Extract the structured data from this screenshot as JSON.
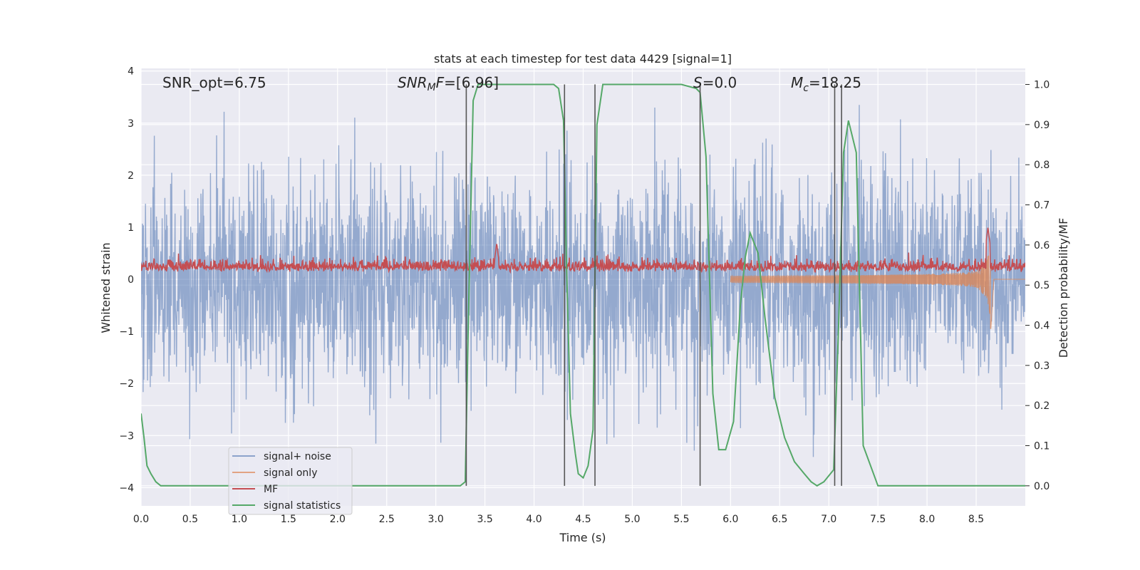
{
  "chart_data": {
    "type": "line",
    "title": "stats at each timestep for test data 4429 [signal=1]",
    "xlabel": "Time (s)",
    "ylabel": "Whitened strain",
    "y2label": "Detection probability/MF",
    "xlim": [
      0.0,
      9.0
    ],
    "ylim": [
      -4.35,
      4.05
    ],
    "y2lim": [
      -0.05,
      1.04
    ],
    "x_ticks": [
      "0.0",
      "0.5",
      "1.0",
      "1.5",
      "2.0",
      "2.5",
      "3.0",
      "3.5",
      "4.0",
      "4.5",
      "5.0",
      "5.5",
      "6.0",
      "6.5",
      "7.0",
      "7.5",
      "8.0",
      "8.5"
    ],
    "y_ticks": [
      "4",
      "3",
      "2",
      "1",
      "0",
      "−1",
      "−2",
      "−3",
      "−4"
    ],
    "y2_ticks": [
      "1.0",
      "0.9",
      "0.8",
      "0.7",
      "0.6",
      "0.5",
      "0.4",
      "0.3",
      "0.2",
      "0.1",
      "0.0"
    ],
    "grid": true,
    "legend_position": "lower-left",
    "annotations": {
      "snr_opt": "SNR_opt=6.75",
      "snr_mf_sym": "SNR",
      "snr_mf_sub": "M",
      "snr_mf_italic": "F",
      "snr_mf_rest": "=[6.96]",
      "s_sym": "S",
      "s_rest": "=0.0",
      "mc_sym": "M",
      "mc_sub": "c",
      "mc_rest": "=18.25"
    },
    "vertical_lines_x": [
      3.31,
      4.31,
      4.62,
      5.69,
      7.06,
      7.13
    ],
    "series": [
      {
        "name": "signal+ noise",
        "color": "#4c72b0",
        "axis": "left",
        "noise_envelope": {
          "typical_amplitude": 1.5,
          "max_peak": 3.45,
          "min_trough": -3.85
        }
      },
      {
        "name": "signal only",
        "color": "#dd8452",
        "axis": "left",
        "chirp": {
          "start_x": 6.0,
          "merger_x": 8.65,
          "peak_amplitude": 1.3
        }
      },
      {
        "name": "MF",
        "color": "#c44e52",
        "axis": "left",
        "baseline": 0.2,
        "spikes": [
          {
            "x": 3.62,
            "y": 0.7
          },
          {
            "x": 8.62,
            "y": 1.0
          }
        ]
      },
      {
        "name": "signal statistics",
        "color": "#55a868",
        "axis": "right",
        "x": [
          0.0,
          0.03,
          0.06,
          0.1,
          0.15,
          0.2,
          0.3,
          0.5,
          1.0,
          2.0,
          3.0,
          3.25,
          3.3,
          3.33,
          3.38,
          3.43,
          3.5,
          3.75,
          4.0,
          4.2,
          4.25,
          4.3,
          4.33,
          4.37,
          4.42,
          4.45,
          4.5,
          4.55,
          4.6,
          4.64,
          4.7,
          5.0,
          5.5,
          5.65,
          5.69,
          5.75,
          5.82,
          5.88,
          5.95,
          6.03,
          6.1,
          6.15,
          6.2,
          6.28,
          6.35,
          6.45,
          6.55,
          6.65,
          6.75,
          6.82,
          6.88,
          6.95,
          7.05,
          7.1,
          7.15,
          7.2,
          7.28,
          7.35,
          7.5,
          8.0,
          9.0
        ],
        "y": [
          0.18,
          0.12,
          0.05,
          0.03,
          0.01,
          0.0,
          0.0,
          0.0,
          0.0,
          0.0,
          0.0,
          0.0,
          0.01,
          0.4,
          0.96,
          1.0,
          1.0,
          1.0,
          1.0,
          1.0,
          0.99,
          0.91,
          0.55,
          0.18,
          0.08,
          0.03,
          0.02,
          0.05,
          0.14,
          0.9,
          1.0,
          1.0,
          1.0,
          0.99,
          0.98,
          0.82,
          0.23,
          0.09,
          0.09,
          0.16,
          0.45,
          0.57,
          0.63,
          0.58,
          0.42,
          0.22,
          0.12,
          0.06,
          0.03,
          0.01,
          0.0,
          0.01,
          0.04,
          0.4,
          0.83,
          0.91,
          0.83,
          0.1,
          0.0,
          0.0,
          0.0
        ]
      }
    ]
  }
}
